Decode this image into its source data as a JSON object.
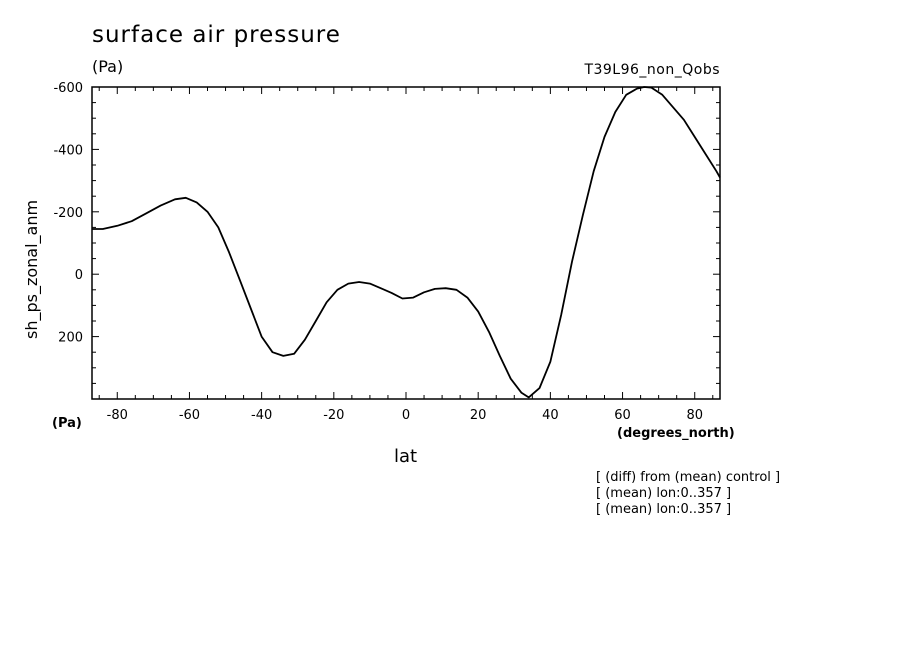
{
  "chart_data": {
    "type": "line",
    "title": "surface air pressure",
    "title_unit": "(Pa)",
    "run_label": "T39L96_non_Qobs",
    "xlabel": "lat",
    "x_unit": "(degrees_north)",
    "ylabel": "sh_ps_zonal_anm",
    "y_unit": "(Pa)",
    "xlim": [
      -87,
      87
    ],
    "ylim": [
      -600,
      400
    ],
    "y_inverted": true,
    "grid": false,
    "x_ticks": [
      -80,
      -60,
      -40,
      -20,
      0,
      20,
      40,
      60,
      80
    ],
    "x_tick_labels": [
      "-80",
      "-60",
      "-40",
      "-20",
      "0",
      "20",
      "40",
      "60",
      "80"
    ],
    "y_ticks": [
      -600,
      -400,
      -200,
      0,
      200
    ],
    "y_tick_labels": [
      "-600",
      "-400",
      "-200",
      "0",
      "200"
    ],
    "series": [
      {
        "x": [
          -87,
          -84,
          -80,
          -76,
          -72,
          -68,
          -64,
          -61,
          -58,
          -55,
          -52,
          -49,
          -46,
          -43,
          -40,
          -37,
          -34,
          -31,
          -28,
          -25,
          -22,
          -19,
          -16,
          -13,
          -10,
          -7,
          -4,
          -1,
          2,
          5,
          8,
          11,
          14,
          17,
          20,
          23,
          26,
          29,
          32,
          34,
          37,
          40,
          43,
          46,
          49,
          52,
          55,
          58,
          61,
          64,
          66,
          68,
          71,
          74,
          77,
          80,
          83,
          86,
          87
        ],
        "y": [
          -145,
          -145,
          -155,
          -170,
          -195,
          -220,
          -240,
          -245,
          -230,
          -200,
          -150,
          -70,
          20,
          110,
          200,
          250,
          262,
          255,
          210,
          150,
          90,
          50,
          30,
          25,
          30,
          45,
          60,
          78,
          75,
          58,
          47,
          45,
          50,
          75,
          120,
          185,
          262,
          335,
          380,
          395,
          365,
          280,
          130,
          -40,
          -190,
          -330,
          -440,
          -520,
          -575,
          -595,
          -600,
          -598,
          -575,
          -535,
          -495,
          -440,
          -385,
          -330,
          -310
        ]
      }
    ],
    "notes": [
      "[ (diff) from (mean) control ]",
      "[ (mean) lon:0..357 ]",
      "[ (mean) lon:0..357 ]"
    ]
  },
  "colors": {
    "line": "#000000",
    "axes": "#000000",
    "background": "#ffffff"
  }
}
